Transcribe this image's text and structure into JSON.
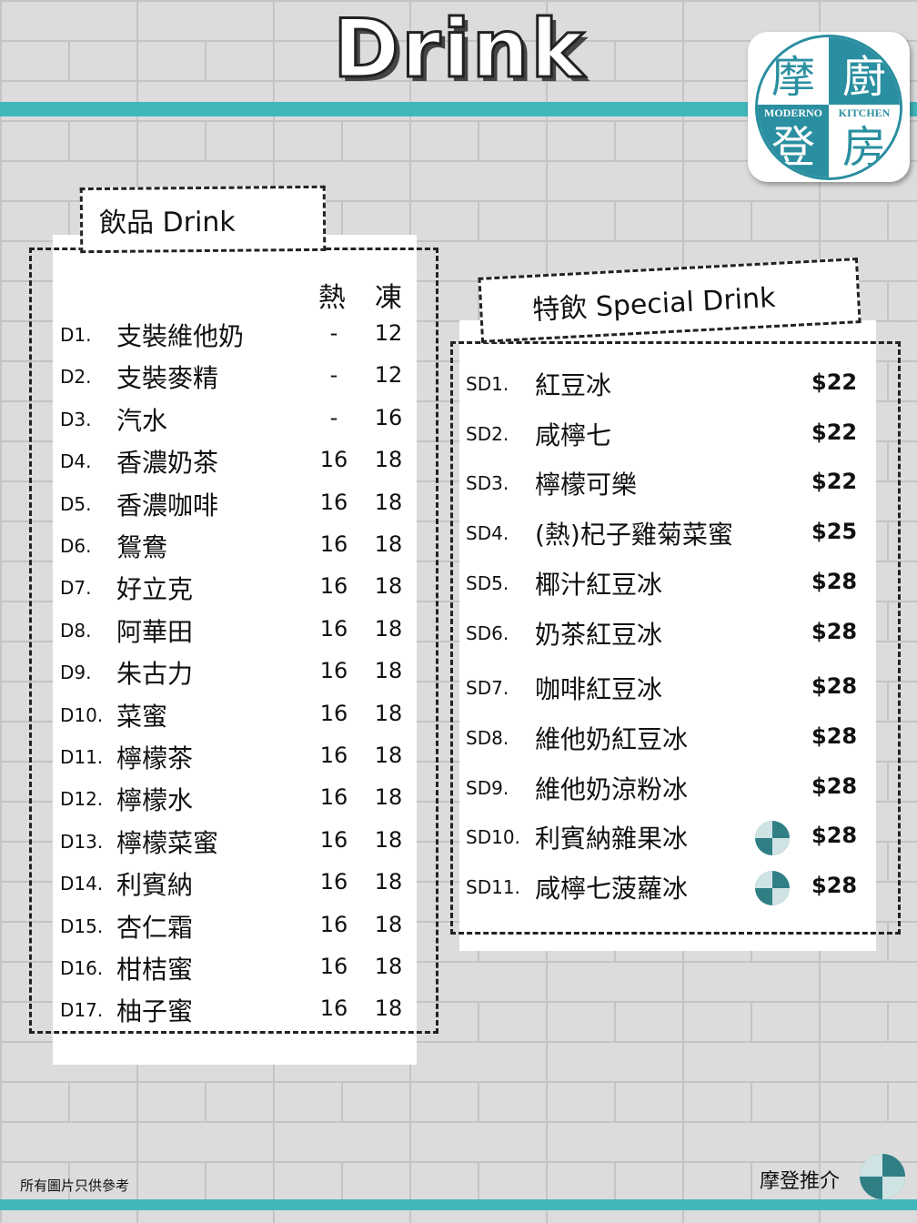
{
  "header": {
    "title": "Drink"
  },
  "logo": {
    "chars": [
      "摩",
      "廚",
      "登",
      "房"
    ],
    "en_left": "MODERNO",
    "en_right": "KITCHEN",
    "colors": {
      "teal": "#2a8fa0",
      "band": "#41b7bc"
    }
  },
  "drinks": {
    "title": "飲品 Drink",
    "col_hot": "熱",
    "col_cold": "凍",
    "items": [
      {
        "code": "D1.",
        "name": "支裝維他奶",
        "hot": "-",
        "cold": "12"
      },
      {
        "code": "D2.",
        "name": "支裝麥精",
        "hot": "-",
        "cold": "12"
      },
      {
        "code": "D3.",
        "name": "汽水",
        "hot": "-",
        "cold": "16"
      },
      {
        "code": "D4.",
        "name": "香濃奶茶",
        "hot": "16",
        "cold": "18"
      },
      {
        "code": "D5.",
        "name": "香濃咖啡",
        "hot": "16",
        "cold": "18"
      },
      {
        "code": "D6.",
        "name": "鴛鴦",
        "hot": "16",
        "cold": "18"
      },
      {
        "code": "D7.",
        "name": "好立克",
        "hot": "16",
        "cold": "18"
      },
      {
        "code": "D8.",
        "name": "阿華田",
        "hot": "16",
        "cold": "18"
      },
      {
        "code": "D9.",
        "name": "朱古力",
        "hot": "16",
        "cold": "18"
      },
      {
        "code": "D10.",
        "name": "菜蜜",
        "hot": "16",
        "cold": "18"
      },
      {
        "code": "D11.",
        "name": "檸檬茶",
        "hot": "16",
        "cold": "18"
      },
      {
        "code": "D12.",
        "name": "檸檬水",
        "hot": "16",
        "cold": "18"
      },
      {
        "code": "D13.",
        "name": "檸檬菜蜜",
        "hot": "16",
        "cold": "18"
      },
      {
        "code": "D14.",
        "name": "利賓納",
        "hot": "16",
        "cold": "18"
      },
      {
        "code": "D15.",
        "name": "杏仁霜",
        "hot": "16",
        "cold": "18"
      },
      {
        "code": "D16.",
        "name": "柑桔蜜",
        "hot": "16",
        "cold": "18"
      },
      {
        "code": "D17.",
        "name": "柚子蜜",
        "hot": "16",
        "cold": "18"
      }
    ]
  },
  "special": {
    "title": "特飲 Special Drink",
    "items": [
      {
        "code": "SD1.",
        "name": "紅豆冰",
        "price": "$22",
        "recommended": false
      },
      {
        "code": "SD2.",
        "name": "咸檸七",
        "price": "$22",
        "recommended": false
      },
      {
        "code": "SD3.",
        "name": "檸檬可樂",
        "price": "$22",
        "recommended": false
      },
      {
        "code": "SD4.",
        "name": "(熱)杞子雞菊菜蜜",
        "price": "$25",
        "recommended": false
      },
      {
        "code": "SD5.",
        "name": "椰汁紅豆冰",
        "price": "$28",
        "recommended": false
      },
      {
        "code": "SD6.",
        "name": "奶茶紅豆冰",
        "price": "$28",
        "recommended": false
      },
      {
        "code": "SD7.",
        "name": "咖啡紅豆冰",
        "price": "$28",
        "recommended": false
      },
      {
        "code": "SD8.",
        "name": "維他奶紅豆冰",
        "price": "$28",
        "recommended": false
      },
      {
        "code": "SD9.",
        "name": "維他奶涼粉冰",
        "price": "$28",
        "recommended": false
      },
      {
        "code": "SD10.",
        "name": "利賓納雜果冰",
        "price": "$28",
        "recommended": true
      },
      {
        "code": "SD11.",
        "name": "咸檸七菠蘿冰",
        "price": "$28",
        "recommended": true
      }
    ]
  },
  "footer": {
    "disclaimer": "所有圖片只供參考",
    "recommend_label": "摩登推介"
  }
}
